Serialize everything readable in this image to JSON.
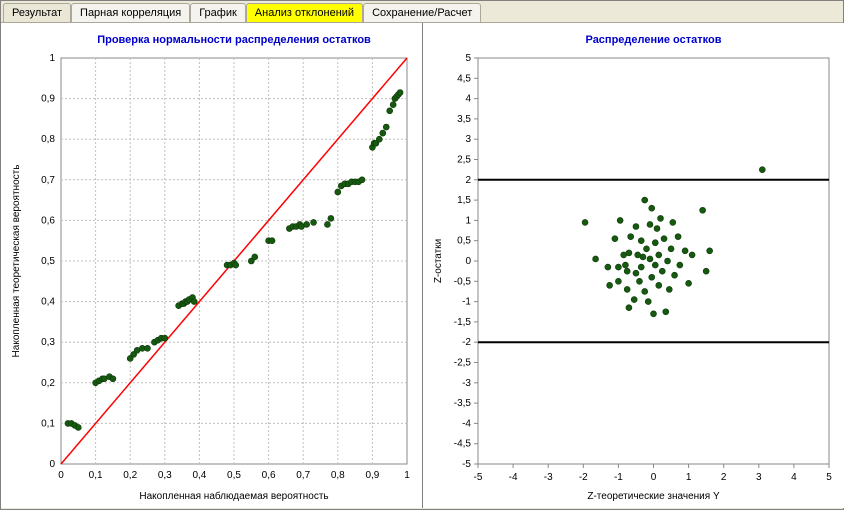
{
  "tabs": [
    {
      "label": "Результат",
      "active": false
    },
    {
      "label": "Парная корреляция",
      "active": false
    },
    {
      "label": "График",
      "active": false
    },
    {
      "label": "Анализ отклонений",
      "active": true
    },
    {
      "label": "Сохранение/Расчет",
      "active": false
    }
  ],
  "colors": {
    "title": "#0000cd",
    "marker_fill": "#165a0f",
    "marker_stroke": "#0d3809",
    "ref_line": "#ff0000",
    "h_line": "#000000",
    "grid": "#c0c0c0",
    "frame": "#888888",
    "bg": "#ffffff",
    "window_bg": "#ece9d8",
    "tab_active_bg": "#ffff00"
  },
  "left_chart": {
    "type": "scatter",
    "title": "Проверка нормальности распределения остатков",
    "title_fontsize": 11,
    "xlabel": "Накопленная наблюдаемая вероятность",
    "ylabel": "Накопленная теоретическая вероятность",
    "label_fontsize": 10,
    "xlim": [
      0,
      1
    ],
    "ylim": [
      0,
      1
    ],
    "xtick_step": 0.1,
    "ytick_step": 0.1,
    "grid": true,
    "marker_size": 3,
    "ref_line": {
      "x0": 0,
      "y0": 0,
      "x1": 1,
      "y1": 1,
      "color": "#ff0000",
      "width": 1.5
    },
    "points": [
      [
        0.02,
        0.1
      ],
      [
        0.03,
        0.1
      ],
      [
        0.04,
        0.095
      ],
      [
        0.05,
        0.09
      ],
      [
        0.1,
        0.2
      ],
      [
        0.11,
        0.205
      ],
      [
        0.12,
        0.21
      ],
      [
        0.125,
        0.21
      ],
      [
        0.14,
        0.215
      ],
      [
        0.15,
        0.21
      ],
      [
        0.2,
        0.26
      ],
      [
        0.21,
        0.27
      ],
      [
        0.22,
        0.28
      ],
      [
        0.235,
        0.285
      ],
      [
        0.25,
        0.285
      ],
      [
        0.27,
        0.3
      ],
      [
        0.28,
        0.305
      ],
      [
        0.29,
        0.31
      ],
      [
        0.3,
        0.31
      ],
      [
        0.34,
        0.39
      ],
      [
        0.35,
        0.395
      ],
      [
        0.355,
        0.395
      ],
      [
        0.36,
        0.4
      ],
      [
        0.365,
        0.4
      ],
      [
        0.37,
        0.405
      ],
      [
        0.38,
        0.41
      ],
      [
        0.385,
        0.4
      ],
      [
        0.48,
        0.49
      ],
      [
        0.49,
        0.49
      ],
      [
        0.5,
        0.495
      ],
      [
        0.505,
        0.49
      ],
      [
        0.55,
        0.5
      ],
      [
        0.56,
        0.51
      ],
      [
        0.6,
        0.55
      ],
      [
        0.61,
        0.55
      ],
      [
        0.66,
        0.58
      ],
      [
        0.67,
        0.585
      ],
      [
        0.68,
        0.585
      ],
      [
        0.69,
        0.59
      ],
      [
        0.695,
        0.585
      ],
      [
        0.71,
        0.59
      ],
      [
        0.73,
        0.595
      ],
      [
        0.77,
        0.59
      ],
      [
        0.78,
        0.605
      ],
      [
        0.8,
        0.67
      ],
      [
        0.81,
        0.685
      ],
      [
        0.82,
        0.69
      ],
      [
        0.83,
        0.69
      ],
      [
        0.84,
        0.695
      ],
      [
        0.85,
        0.695
      ],
      [
        0.86,
        0.695
      ],
      [
        0.87,
        0.7
      ],
      [
        0.9,
        0.78
      ],
      [
        0.905,
        0.79
      ],
      [
        0.91,
        0.79
      ],
      [
        0.92,
        0.8
      ],
      [
        0.93,
        0.815
      ],
      [
        0.94,
        0.83
      ],
      [
        0.95,
        0.87
      ],
      [
        0.96,
        0.885
      ],
      [
        0.965,
        0.9
      ],
      [
        0.97,
        0.905
      ],
      [
        0.975,
        0.91
      ],
      [
        0.98,
        0.915
      ]
    ]
  },
  "right_chart": {
    "type": "scatter",
    "title": "Распределение остатков",
    "title_fontsize": 11,
    "xlabel": "Z-теоретические значения Y",
    "ylabel": "Z-остатки",
    "label_fontsize": 10,
    "xlim": [
      -5,
      5
    ],
    "ylim": [
      -5,
      5
    ],
    "xtick_step": 1,
    "ytick_step": 0.5,
    "grid": false,
    "marker_size": 3,
    "h_lines": [
      2,
      -2
    ],
    "h_line_color": "#000000",
    "h_line_width": 2,
    "points": [
      [
        3.1,
        2.25
      ],
      [
        -1.95,
        0.95
      ],
      [
        -1.65,
        0.05
      ],
      [
        -1.3,
        -0.15
      ],
      [
        -1.25,
        -0.6
      ],
      [
        -1.1,
        0.55
      ],
      [
        -1.0,
        -0.5
      ],
      [
        -1.0,
        -0.15
      ],
      [
        -0.95,
        1.0
      ],
      [
        -0.85,
        0.15
      ],
      [
        -0.8,
        -0.1
      ],
      [
        -0.75,
        -0.7
      ],
      [
        -0.75,
        -0.25
      ],
      [
        -0.7,
        0.2
      ],
      [
        -0.7,
        -1.15
      ],
      [
        -0.65,
        0.6
      ],
      [
        -0.55,
        -0.95
      ],
      [
        -0.5,
        -0.3
      ],
      [
        -0.5,
        0.85
      ],
      [
        -0.45,
        0.15
      ],
      [
        -0.4,
        -0.5
      ],
      [
        -0.35,
        0.5
      ],
      [
        -0.35,
        -0.15
      ],
      [
        -0.3,
        0.1
      ],
      [
        -0.25,
        -0.75
      ],
      [
        -0.25,
        1.5
      ],
      [
        -0.2,
        0.3
      ],
      [
        -0.15,
        -1.0
      ],
      [
        -0.1,
        0.05
      ],
      [
        -0.1,
        0.9
      ],
      [
        -0.05,
        -0.4
      ],
      [
        -0.05,
        1.3
      ],
      [
        0.0,
        -1.3
      ],
      [
        0.05,
        -0.1
      ],
      [
        0.05,
        0.45
      ],
      [
        0.1,
        0.8
      ],
      [
        0.15,
        -0.6
      ],
      [
        0.15,
        0.15
      ],
      [
        0.2,
        1.05
      ],
      [
        0.25,
        -0.25
      ],
      [
        0.3,
        0.55
      ],
      [
        0.35,
        -1.25
      ],
      [
        0.4,
        0.0
      ],
      [
        0.45,
        -0.7
      ],
      [
        0.5,
        0.3
      ],
      [
        0.55,
        0.95
      ],
      [
        0.6,
        -0.35
      ],
      [
        0.7,
        0.6
      ],
      [
        0.75,
        -0.1
      ],
      [
        0.9,
        0.25
      ],
      [
        1.0,
        -0.55
      ],
      [
        1.1,
        0.15
      ],
      [
        1.4,
        1.25
      ],
      [
        1.5,
        -0.25
      ],
      [
        1.6,
        0.25
      ]
    ]
  }
}
